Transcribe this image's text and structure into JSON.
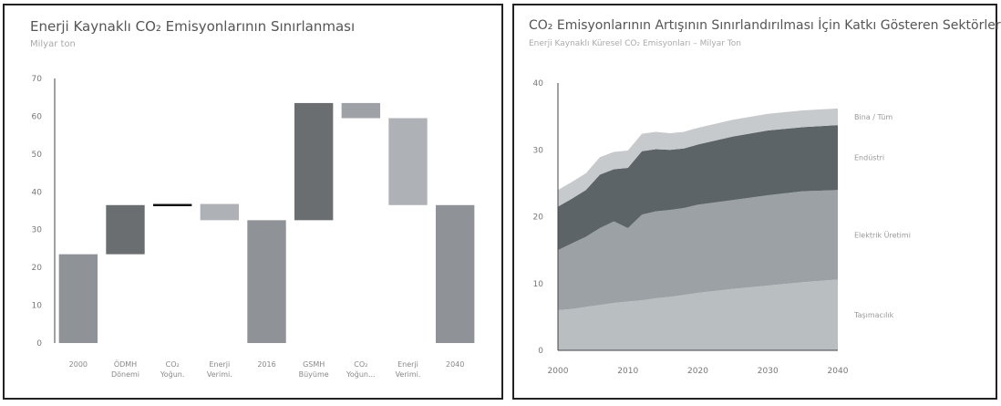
{
  "chart_data": [
    {
      "type": "bar",
      "subtype": "waterfall",
      "title": "Enerji Kaynaklı CO₂ Emisyonlarının Sınırlanması",
      "subtitle": "Milyar ton",
      "ylim": [
        0,
        70
      ],
      "yticks": [
        0,
        10,
        20,
        30,
        40,
        50,
        60,
        70
      ],
      "grid": false,
      "categories": [
        [
          "2000"
        ],
        [
          "ÖDMH",
          "Dönemi"
        ],
        [
          "CO₂",
          "Yoğun."
        ],
        [
          "Enerji",
          "Verimi."
        ],
        [
          "2016"
        ],
        [
          "GSMH",
          "Büyüme"
        ],
        [
          "CO₂",
          "Yoğun..."
        ],
        [
          "Enerji",
          "Verimi."
        ],
        [
          "2040"
        ]
      ],
      "bars": [
        {
          "start": 0,
          "end": 23.5,
          "color": "#8f9296"
        },
        {
          "start": 23.5,
          "end": 36.5,
          "color": "#6a6e70"
        },
        {
          "start": 36.2,
          "end": 36.8,
          "color": "#111111"
        },
        {
          "start": 32.5,
          "end": 36.8,
          "color": "#aeb2b6"
        },
        {
          "start": 0,
          "end": 32.5,
          "color": "#8f9296"
        },
        {
          "start": 32.5,
          "end": 63.5,
          "color": "#6a6e70"
        },
        {
          "start": 59.5,
          "end": 63.5,
          "color": "#9ea2a6"
        },
        {
          "start": 36.5,
          "end": 59.5,
          "color": "#aeb2b6"
        },
        {
          "start": 0,
          "end": 36.5,
          "color": "#8f9296"
        }
      ]
    },
    {
      "type": "area",
      "stacked": true,
      "title": "CO₂ Emisyonlarının Artışının Sınırlandırılması İçin Katkı Gösteren Sektörler",
      "subtitle": "Enerji Kaynaklı Küresel CO₂ Emisyonları – Milyar Ton",
      "xlim": [
        2000,
        2040
      ],
      "ylim": [
        0,
        40
      ],
      "xticks": [
        2000,
        2010,
        2020,
        2030,
        2040
      ],
      "yticks": [
        0,
        10,
        20,
        30,
        40
      ],
      "grid": false,
      "x": [
        2000,
        2002,
        2004,
        2006,
        2008,
        2010,
        2012,
        2014,
        2016,
        2018,
        2020,
        2025,
        2030,
        2035,
        2040
      ],
      "series": [
        {
          "name": "Taşımacılık",
          "color": "#b9bec1",
          "values": [
            6.0,
            6.2,
            6.5,
            6.8,
            7.1,
            7.3,
            7.5,
            7.8,
            8.0,
            8.3,
            8.6,
            9.2,
            9.7,
            10.2,
            10.6
          ]
        },
        {
          "name": "Elektrik Üretimi",
          "color": "#9ba1a4",
          "values": [
            9.0,
            9.8,
            10.5,
            11.5,
            12.2,
            11.0,
            12.8,
            13.0,
            13.0,
            13.0,
            13.2,
            13.3,
            13.5,
            13.6,
            13.4
          ]
        },
        {
          "name": "Endüstri",
          "color": "#5c6468",
          "values": [
            6.5,
            6.7,
            7.0,
            8.0,
            7.8,
            9.0,
            9.5,
            9.3,
            9.0,
            8.9,
            9.0,
            9.5,
            9.7,
            9.6,
            9.7
          ]
        },
        {
          "name": "Bina / Tüm",
          "color": "#c7cacd",
          "values": [
            2.5,
            2.5,
            2.5,
            2.6,
            2.6,
            2.6,
            2.6,
            2.6,
            2.5,
            2.5,
            2.5,
            2.5,
            2.5,
            2.5,
            2.5
          ]
        }
      ]
    }
  ]
}
